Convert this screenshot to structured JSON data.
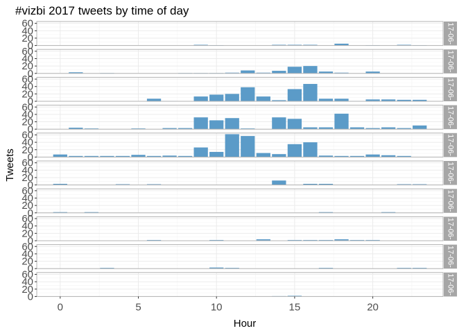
{
  "chart_data": {
    "type": "bar",
    "title": "#vizbi 2017 tweets by time of day",
    "xlabel": "Hour",
    "ylabel": "Tweets",
    "xlim": [
      -1.5,
      24.5
    ],
    "ylim": [
      0,
      65
    ],
    "x_ticks": [
      0,
      5,
      10,
      15,
      20
    ],
    "y_ticks": [
      0,
      20,
      40,
      60
    ],
    "bar_color": "#5b9bc8",
    "grid": true,
    "facets": [
      {
        "strip": "17-06-",
        "values": [
          0,
          0,
          0,
          0,
          0,
          0,
          0,
          0,
          0,
          2,
          1,
          0,
          0,
          0,
          2,
          2,
          2,
          0,
          5,
          0,
          1,
          0,
          2,
          1
        ]
      },
      {
        "strip": "17-06-",
        "values": [
          0,
          3,
          0,
          1,
          0,
          0,
          0,
          0,
          1,
          1,
          1,
          2,
          8,
          2,
          7,
          18,
          20,
          5,
          2,
          0,
          5,
          0,
          0,
          0
        ]
      },
      {
        "strip": "17-06-",
        "values": [
          0,
          0,
          0,
          0,
          0,
          0,
          7,
          1,
          0,
          13,
          18,
          20,
          38,
          13,
          3,
          33,
          47,
          7,
          7,
          1,
          5,
          5,
          4,
          4
        ]
      },
      {
        "strip": "17-06-",
        "values": [
          0,
          4,
          2,
          0,
          0,
          2,
          0,
          3,
          3,
          32,
          24,
          30,
          2,
          0,
          32,
          28,
          5,
          5,
          42,
          5,
          3,
          5,
          3,
          10
        ]
      },
      {
        "strip": "17-06-",
        "values": [
          7,
          3,
          3,
          3,
          3,
          6,
          3,
          4,
          3,
          26,
          14,
          62,
          57,
          11,
          8,
          35,
          40,
          4,
          3,
          3,
          7,
          5,
          3,
          0
        ]
      },
      {
        "strip": "17-06-",
        "values": [
          3,
          0,
          0,
          0,
          2,
          0,
          2,
          0,
          0,
          0,
          0,
          0,
          0,
          0,
          12,
          0,
          3,
          3,
          0,
          0,
          0,
          0,
          2,
          2
        ]
      },
      {
        "strip": "17-06-",
        "values": [
          2,
          0,
          2,
          0,
          0,
          0,
          0,
          0,
          0,
          0,
          0,
          0,
          0,
          0,
          0,
          0,
          0,
          2,
          0,
          0,
          0,
          2,
          0,
          0
        ]
      },
      {
        "strip": "17-06-",
        "values": [
          0,
          0,
          0,
          0,
          0,
          0,
          2,
          0,
          0,
          0,
          2,
          0,
          0,
          4,
          0,
          2,
          2,
          2,
          4,
          2,
          2,
          0,
          0,
          0
        ]
      },
      {
        "strip": "17-06-",
        "values": [
          0,
          0,
          0,
          2,
          0,
          0,
          0,
          0,
          0,
          0,
          3,
          2,
          0,
          0,
          0,
          0,
          0,
          2,
          0,
          0,
          0,
          0,
          2,
          2
        ]
      },
      {
        "strip": "17-06-",
        "values": [
          0,
          0,
          0,
          0,
          0,
          0,
          0,
          0,
          0,
          0,
          0,
          0,
          0,
          0,
          1,
          2,
          0,
          0,
          0,
          0,
          0,
          0,
          0,
          0
        ]
      }
    ]
  }
}
